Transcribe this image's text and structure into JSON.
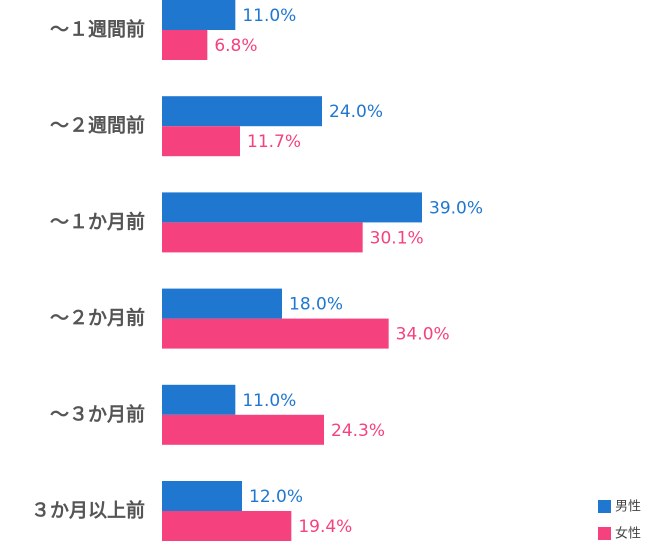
{
  "chart_data": {
    "type": "barh",
    "categories": [
      "～１週間前",
      "～２週間前",
      "～１か月前",
      "～２か月前",
      "～３か月前",
      "３か月以上前"
    ],
    "series": [
      {
        "name": "男性",
        "color": "#1f77d0",
        "values": [
          11.0,
          24.0,
          39.0,
          18.0,
          11.0,
          12.0
        ],
        "value_labels": [
          "11.0%",
          "24.0%",
          "39.0%",
          "18.0%",
          "11.0%",
          "12.0%"
        ]
      },
      {
        "name": "女性",
        "color": "#f5427e",
        "values": [
          6.8,
          11.7,
          30.1,
          34.0,
          24.3,
          19.4
        ],
        "value_labels": [
          "6.8%",
          "11.7%",
          "30.1%",
          "34.0%",
          "24.3%",
          "19.4%"
        ]
      }
    ],
    "legend": "bottom-right"
  }
}
